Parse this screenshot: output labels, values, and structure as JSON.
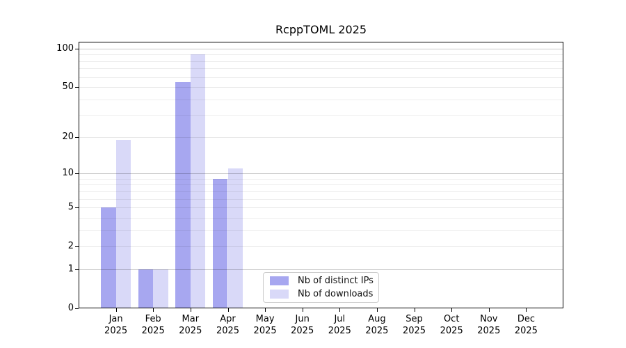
{
  "window": {
    "background": "#ffffff"
  },
  "chart_data": {
    "type": "bar",
    "title": "RcppTOML 2025",
    "categories": [
      "Jan",
      "Feb",
      "Mar",
      "Apr",
      "May",
      "Jun",
      "Jul",
      "Aug",
      "Sep",
      "Oct",
      "Nov",
      "Dec"
    ],
    "x_year_suffix": "2025",
    "series": [
      {
        "name": "Nb of distinct IPs",
        "color": "#a7a7f0",
        "values": [
          5,
          1,
          55,
          9,
          0,
          0,
          0,
          0,
          0,
          0,
          0,
          0
        ]
      },
      {
        "name": "Nb of downloads",
        "color": "#d9d9f8",
        "values": [
          19,
          1,
          90,
          11,
          0,
          0,
          0,
          0,
          0,
          0,
          0,
          0
        ]
      }
    ],
    "yscale": "log1p",
    "ylim": [
      0,
      113
    ],
    "yticks": [
      0,
      1,
      2,
      5,
      10,
      20,
      50,
      100
    ],
    "minor_yticks": [
      3,
      4,
      6,
      7,
      8,
      9,
      30,
      40,
      60,
      70,
      80,
      90
    ],
    "decade_yticks": [
      1,
      10,
      100
    ],
    "grid": true,
    "legend_position": "lower-center-inside",
    "bar_group_fill_ratio": 0.8
  }
}
